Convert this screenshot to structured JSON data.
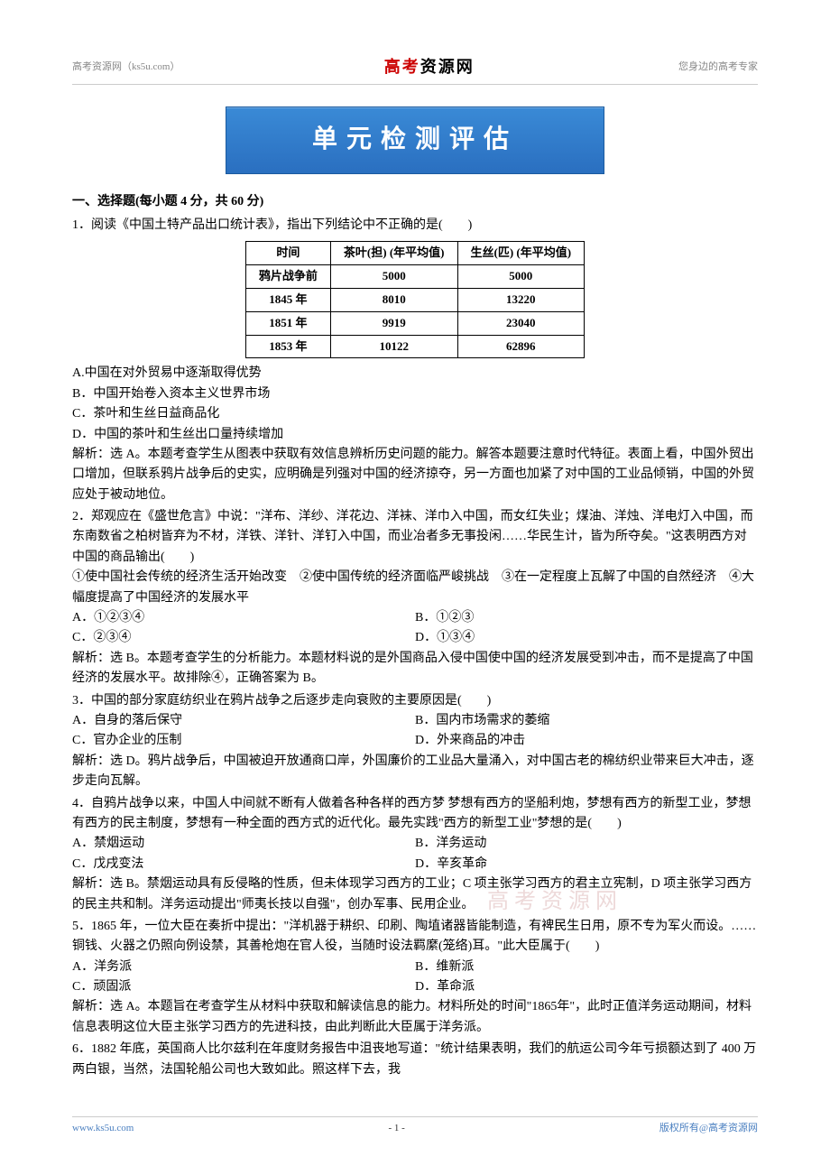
{
  "header": {
    "left": "高考资源网（ks5u.com）",
    "center_red": "高考",
    "center_black": "资源网",
    "right": "您身边的高考专家"
  },
  "banner": "单元检测评估",
  "section1_title": "一、选择题(每小题 4 分，共 60 分)",
  "q1": {
    "stem": "1．阅读《中国土特产品出口统计表》，指出下列结论中不正确的是(　　)",
    "table": {
      "headers": [
        "时间",
        "茶叶(担) (年平均值)",
        "生丝(匹) (年平均值)"
      ],
      "rows": [
        [
          "鸦片战争前",
          "5000",
          "5000"
        ],
        [
          "1845 年",
          "8010",
          "13220"
        ],
        [
          "1851 年",
          "9919",
          "23040"
        ],
        [
          "1853 年",
          "10122",
          "62896"
        ]
      ]
    },
    "optA": "A.中国在对外贸易中逐渐取得优势",
    "optB": "B．中国开始卷入资本主义世界市场",
    "optC": "C．茶叶和生丝日益商品化",
    "optD": "D．中国的茶叶和生丝出口量持续增加",
    "analysis": "解析：选 A。本题考查学生从图表中获取有效信息辨析历史问题的能力。解答本题要注意时代特征。表面上看，中国外贸出口增加，但联系鸦片战争后的史实，应明确是列强对中国的经济掠夺，另一方面也加紧了对中国的工业品倾销，中国的外贸应处于被动地位。"
  },
  "q2": {
    "stem_line1": "2．郑观应在《盛世危言》中说：\"洋布、洋纱、洋花边、洋袜、洋巾入中国，而女红失业；煤油、洋烛、洋电灯入中国，而东南数省之柏树皆弃为不材，洋铁、洋针、洋钉入中国，而业冶者多无事投闲……华民生计，皆为所夺矣。\"这表明西方对中国的商品输出(　　)",
    "stem_line2": "①使中国社会传统的经济生活开始改变　②使中国传统的经济面临严峻挑战　③在一定程度上瓦解了中国的自然经济　④大幅度提高了中国经济的发展水平",
    "optA": "A．①②③④",
    "optB": "B．①②③",
    "optC": "C．②③④",
    "optD": "D．①③④",
    "analysis": "解析：选 B。本题考查学生的分析能力。本题材料说的是外国商品入侵中国使中国的经济发展受到冲击，而不是提高了中国经济的发展水平。故排除④，正确答案为 B。"
  },
  "q3": {
    "stem": "3．中国的部分家庭纺织业在鸦片战争之后逐步走向衰败的主要原因是(　　)",
    "optA": "A．自身的落后保守",
    "optB": "B．国内市场需求的萎缩",
    "optC": "C．官办企业的压制",
    "optD": "D．外来商品的冲击",
    "analysis": "解析：选 D。鸦片战争后，中国被迫开放通商口岸，外国廉价的工业品大量涌入，对中国古老的棉纺织业带来巨大冲击，逐步走向瓦解。"
  },
  "q4": {
    "stem": "4．自鸦片战争以来，中国人中间就不断有人做着各种各样的西方梦 梦想有西方的坚船利炮，梦想有西方的新型工业，梦想有西方的民主制度，梦想有一种全面的西方式的近代化。最先实践\"西方的新型工业\"梦想的是(　　)",
    "optA": "A．禁烟运动",
    "optB": "B．洋务运动",
    "optC": "C．戊戌变法",
    "optD": "D．辛亥革命",
    "analysis": "解析：选 B。禁烟运动具有反侵略的性质，但未体现学习西方的工业；C 项主张学习西方的君主立宪制，D 项主张学习西方的民主共和制。洋务运动提出\"师夷长技以自强\"，创办军事、民用企业。"
  },
  "q5": {
    "stem": "5．1865 年，一位大臣在奏折中提出：\"洋机器于耕织、印刷、陶埴诸器皆能制造，有裨民生日用，原不专为军火而设。……铜钱、火器之仍照向例设禁，其善枪炮在官人役，当随时设法羁縻(笼络)耳。\"此大臣属于(　　)",
    "optA": "A．洋务派",
    "optB": "B．维新派",
    "optC": "C．顽固派",
    "optD": "D．革命派",
    "analysis": "解析：选 A。本题旨在考查学生从材料中获取和解读信息的能力。材料所处的时间\"1865年\"，此时正值洋务运动期间，材料信息表明这位大臣主张学习西方的先进科技，由此判断此大臣属于洋务派。"
  },
  "q6": {
    "stem": "6．1882 年底，英国商人比尔兹利在年度财务报告中沮丧地写道：\"统计结果表明，我们的航运公司今年亏损额达到了 400 万两白银，当然，法国轮船公司也大致如此。照这样下去，我"
  },
  "watermark": "高考资源网",
  "footer": {
    "left": "www.ks5u.com",
    "center": "- 1 -",
    "right": "版权所有@高考资源网"
  }
}
